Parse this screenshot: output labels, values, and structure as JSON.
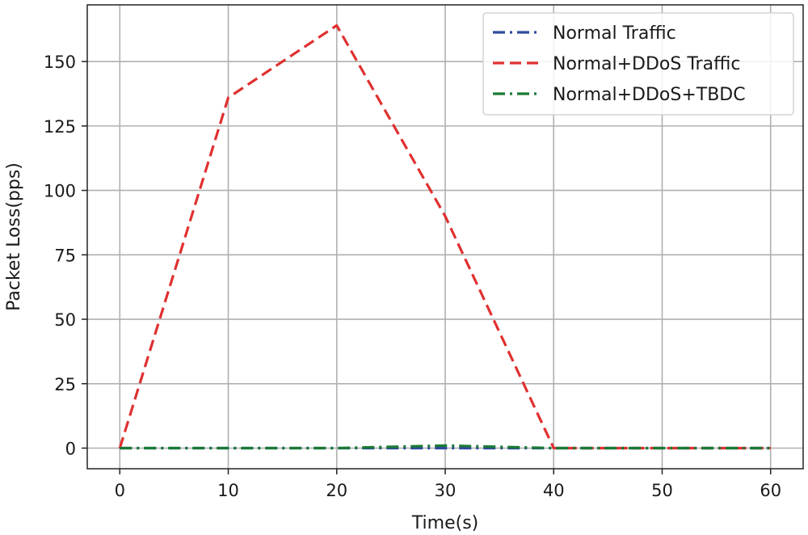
{
  "chart_data": {
    "type": "line",
    "title": "",
    "xlabel": "Time(s)",
    "ylabel": "Packet Loss(pps)",
    "xlim": [
      -3,
      63
    ],
    "ylim": [
      -8,
      172
    ],
    "xticks": [
      0,
      10,
      20,
      30,
      40,
      50,
      60
    ],
    "yticks": [
      0,
      25,
      50,
      75,
      100,
      125,
      150
    ],
    "grid": true,
    "legend_position": "top-right",
    "x": [
      0,
      10,
      20,
      30,
      40,
      50,
      60
    ],
    "series": [
      {
        "name": "Normal Traffic",
        "values": [
          0,
          0,
          0,
          0,
          0,
          0,
          0
        ],
        "color": "#2e4a9e",
        "style": "dashdot"
      },
      {
        "name": "Normal+DDoS Traffic",
        "values": [
          0,
          136,
          164,
          90,
          0,
          0,
          0
        ],
        "color": "#e03030",
        "style": "dashed"
      },
      {
        "name": "Normal+DDoS+TBDC",
        "values": [
          0,
          0,
          0,
          1,
          0,
          0,
          0
        ],
        "color": "#1a7a35",
        "style": "dashdot"
      }
    ]
  }
}
